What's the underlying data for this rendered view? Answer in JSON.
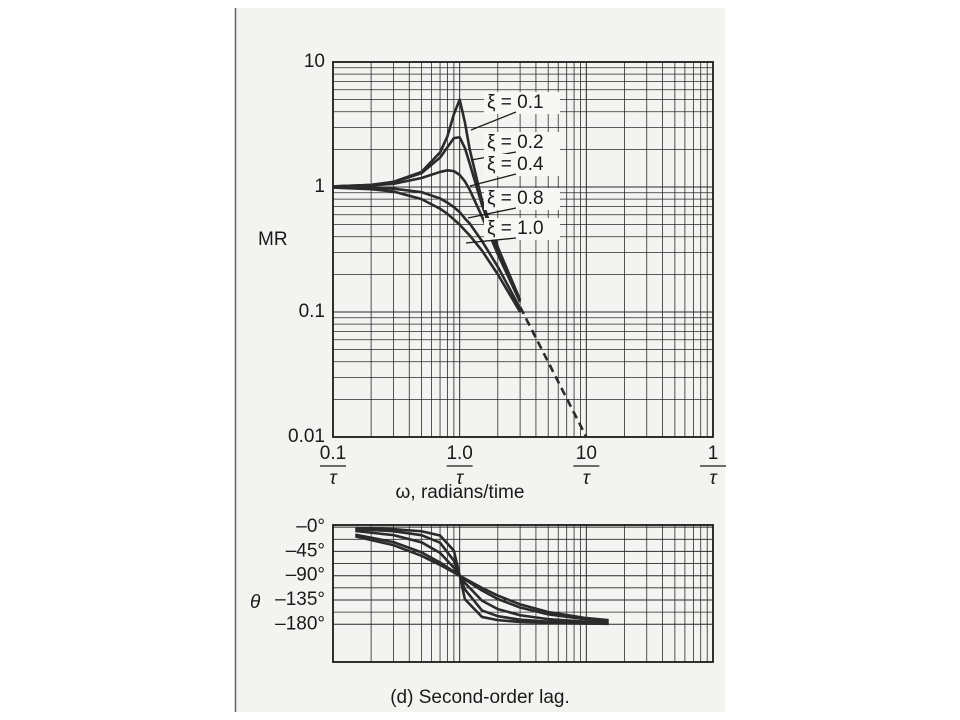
{
  "chart_data": [
    {
      "type": "line",
      "log_x": true,
      "log_y": true,
      "grid": true,
      "minor_grid": true,
      "y_label": "MR",
      "x_label": "ω, radians/time",
      "x_tick_denominator": "τ",
      "xlim": [
        0.1,
        100
      ],
      "ylim": [
        0.01,
        10
      ],
      "xticks": [
        0.1,
        {
          "value": 1,
          "label": "1.0"
        },
        10,
        {
          "value": 100,
          "label": "1"
        }
      ],
      "yticks": [
        0.01,
        0.1,
        1,
        10
      ],
      "x": [
        0.1,
        0.2,
        0.3,
        0.5,
        0.7,
        0.8,
        0.9,
        1.0,
        1.1,
        1.2,
        1.5,
        2.0,
        3.0
      ],
      "series": [
        {
          "name": "ξ = 0.1",
          "color": "#2b2b2b",
          "values": [
            1.01,
            1.04,
            1.1,
            1.32,
            1.89,
            2.54,
            3.82,
            5.0,
            3.29,
            2.0,
            0.78,
            0.33,
            0.125
          ]
        },
        {
          "name": "ξ = 0.2",
          "color": "#2b2b2b",
          "values": [
            1.01,
            1.04,
            1.09,
            1.29,
            1.72,
            2.08,
            2.46,
            2.5,
            2.05,
            1.54,
            0.72,
            0.32,
            0.124
          ]
        },
        {
          "name": "ξ = 0.4",
          "color": "#2b2b2b",
          "values": [
            1.01,
            1.03,
            1.06,
            1.18,
            1.32,
            1.36,
            1.34,
            1.25,
            1.11,
            0.95,
            0.58,
            0.29,
            0.12
          ]
        },
        {
          "name": "ξ = 0.8",
          "color": "#2b2b2b",
          "values": [
            1.0,
            0.99,
            0.97,
            0.91,
            0.81,
            0.75,
            0.69,
            0.63,
            0.56,
            0.51,
            0.37,
            0.23,
            0.107
          ]
        },
        {
          "name": "ξ = 1.0",
          "color": "#2b2b2b",
          "values": [
            0.99,
            0.96,
            0.92,
            0.8,
            0.67,
            0.61,
            0.55,
            0.5,
            0.45,
            0.41,
            0.31,
            0.2,
            0.1
          ]
        }
      ],
      "asymptote": {
        "x": [
          3,
          10
        ],
        "values": [
          0.11,
          0.01
        ],
        "color": "#2b2b2b",
        "dashed": true
      }
    },
    {
      "type": "line",
      "log_x": true,
      "grid": true,
      "minor_grid": true,
      "y_label": "θ",
      "caption": "(d) Second-order lag.",
      "xlim": [
        0.1,
        100
      ],
      "ylim": [
        -250,
        4
      ],
      "yticks": [
        {
          "value": 0,
          "label": "–0°"
        },
        {
          "value": -45,
          "label": "–45°"
        },
        {
          "value": -90,
          "label": "–90°"
        },
        {
          "value": -135,
          "label": "–135°"
        },
        {
          "value": -180,
          "label": "–180°"
        }
      ],
      "x": [
        0.15,
        0.3,
        0.5,
        0.7,
        0.9,
        1.0,
        1.1,
        1.5,
        2,
        3,
        5,
        10,
        15
      ],
      "series": [
        {
          "color": "#2b2b2b",
          "values": [
            -1.8,
            -3.8,
            -7.6,
            -15.4,
            -43.5,
            -90,
            -133.7,
            -166.5,
            -172.4,
            -175.7,
            -177.6,
            -178.8,
            -179.2
          ]
        },
        {
          "color": "#2b2b2b",
          "values": [
            -3.5,
            -7.5,
            -14.9,
            -28.8,
            -62.2,
            -90,
            -115.5,
            -154.4,
            -165.1,
            -171.5,
            -175.2,
            -177.7,
            -178.5
          ]
        },
        {
          "color": "#2b2b2b",
          "values": [
            -7.0,
            -14.8,
            -28.1,
            -47.7,
            -75.2,
            -90,
            -103.4,
            -136.2,
            -151.9,
            -163.3,
            -170.5,
            -175.4,
            -176.9
          ]
        },
        {
          "color": "#2b2b2b",
          "values": [
            -13.8,
            -27.8,
            -46.8,
            -65.5,
            -82.5,
            -90,
            -96.8,
            -117.5,
            -133.2,
            -149.0,
            -161.6,
            -170.8,
            -173.9
          ]
        },
        {
          "color": "#2b2b2b",
          "values": [
            -17.1,
            -33.4,
            -53.1,
            -70.0,
            -84.0,
            -90,
            -95.5,
            -112.6,
            -126.9,
            -143.1,
            -157.4,
            -168.6,
            -172.4
          ]
        }
      ]
    }
  ]
}
